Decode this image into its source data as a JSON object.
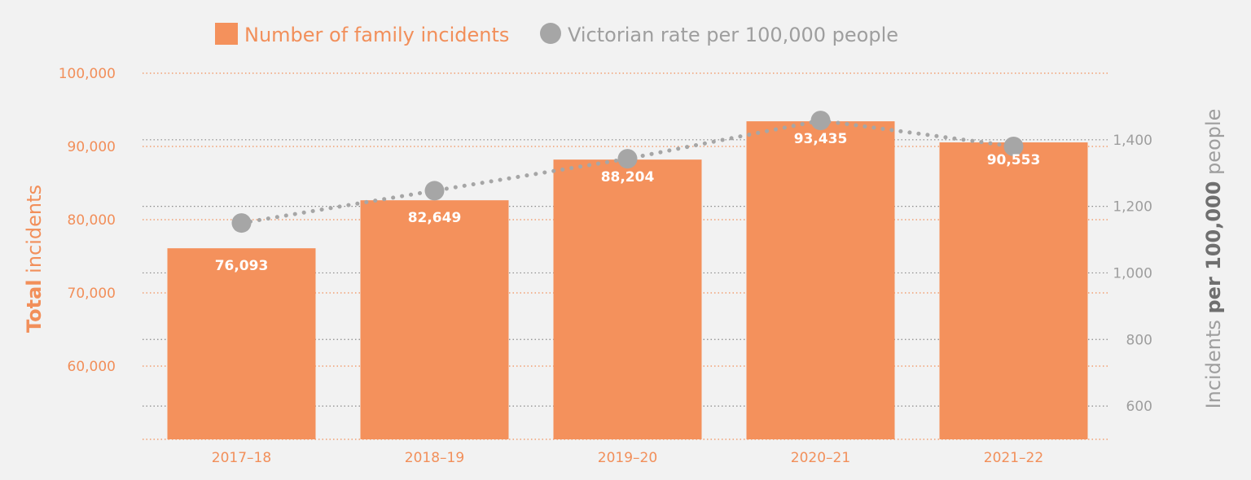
{
  "chart_data": {
    "type": "bar",
    "categories": [
      "2017–18",
      "2018–19",
      "2019–20",
      "2020–21",
      "2021–22"
    ],
    "series": [
      {
        "name": "Number of family incidents",
        "type": "bar",
        "axis": "left",
        "values": [
          76093,
          82649,
          88204,
          93435,
          90553
        ],
        "value_labels": [
          "76,093",
          "82,649",
          "88,204",
          "93,435",
          "90,553"
        ]
      },
      {
        "name": "Victorian rate per 100,000 people",
        "type": "line",
        "style": "dotted",
        "axis": "right",
        "values": [
          1150,
          1247,
          1343,
          1458,
          1380
        ]
      }
    ],
    "y_left": {
      "label_bold": "Total",
      "label_rest": " incidents",
      "ylim": [
        50000,
        100000
      ],
      "ticks": [
        60000,
        70000,
        80000,
        90000,
        100000
      ],
      "tick_labels": [
        "60,000",
        "70,000",
        "80,000",
        "90,000",
        "100,000"
      ]
    },
    "y_right": {
      "label_pre": "Incidents ",
      "label_bold": "per 100,000",
      "label_post": " people",
      "ylim": [
        500,
        1600
      ],
      "ticks": [
        600,
        800,
        1000,
        1200,
        1400
      ],
      "tick_labels": [
        "600",
        "800",
        "1,000",
        "1,200",
        "1,400"
      ]
    },
    "grid": true,
    "legend_position": "top"
  },
  "colors": {
    "bar": "#f4915c",
    "line": "#a6a6a6",
    "left_axis_text": "#f28f5a",
    "right_axis_text": "#9e9e9e",
    "background": "#f2f2f2"
  }
}
